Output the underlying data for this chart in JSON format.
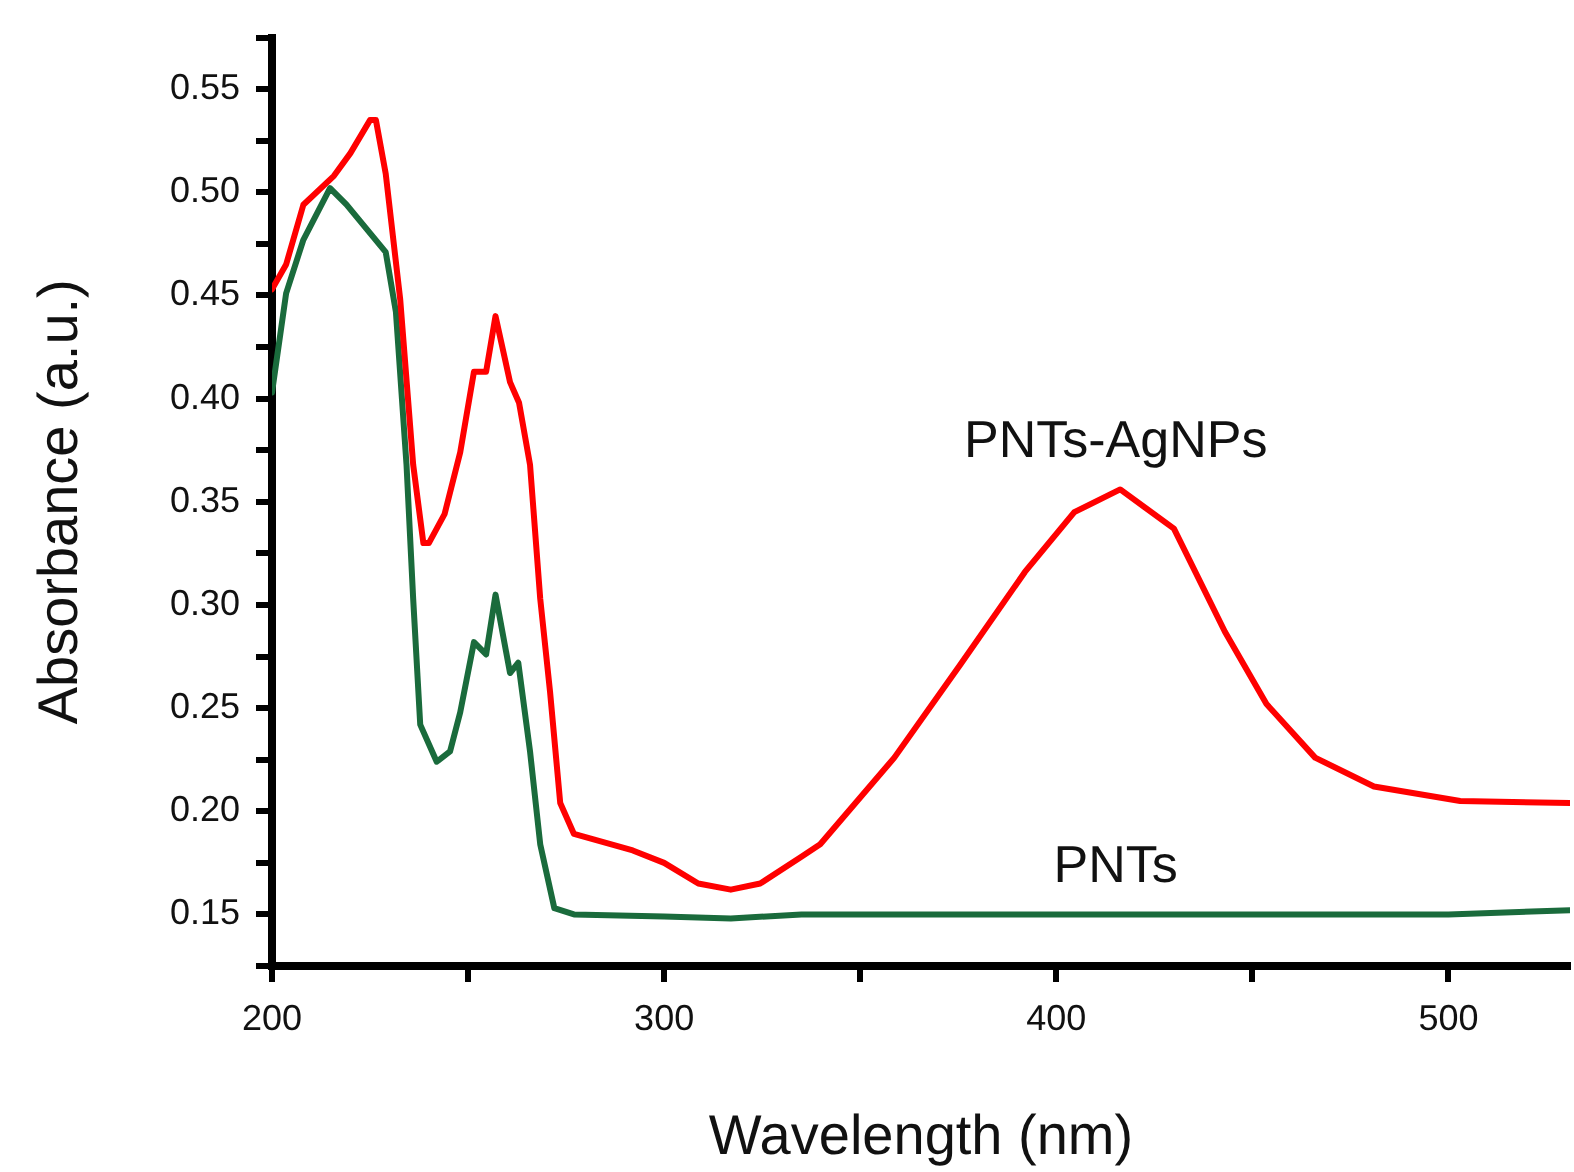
{
  "chart_data": {
    "type": "line",
    "xlabel": "Wavelength (nm)",
    "ylabel": "Absorbance (a.u.)",
    "xlim": [
      200,
      531
    ],
    "ylim": [
      0.125,
      0.575
    ],
    "xticks": [
      200,
      {
        "value": 250,
        "label": null
      },
      300,
      {
        "value": 350,
        "label": null
      },
      400,
      {
        "value": 450,
        "label": null
      },
      500
    ],
    "yticks": [
      {
        "value": 0.125,
        "label": null
      },
      {
        "value": 0.15,
        "label": "0.15"
      },
      {
        "value": 0.175,
        "label": null
      },
      {
        "value": 0.2,
        "label": "0.20"
      },
      {
        "value": 0.225,
        "label": null
      },
      {
        "value": 0.25,
        "label": "0.25"
      },
      {
        "value": 0.275,
        "label": null
      },
      {
        "value": 0.3,
        "label": "0.30"
      },
      {
        "value": 0.325,
        "label": null
      },
      {
        "value": 0.35,
        "label": "0.35"
      },
      {
        "value": 0.375,
        "label": null
      },
      {
        "value": 0.4,
        "label": "0.40"
      },
      {
        "value": 0.425,
        "label": null
      },
      {
        "value": 0.45,
        "label": "0.45"
      },
      {
        "value": 0.475,
        "label": null
      },
      {
        "value": 0.5,
        "label": "0.50"
      },
      {
        "value": 0.525,
        "label": null
      },
      {
        "value": 0.55,
        "label": "0.55"
      },
      {
        "value": 0.575,
        "label": null
      }
    ],
    "grid": false,
    "legend": false,
    "marker": "none",
    "line_style": "solid",
    "series": [
      {
        "name": "PNTs-AgNPs",
        "color": "#ff0000",
        "x": [
          200,
          203.6,
          208,
          215.8,
          220,
          225,
          226.5,
          229,
          232.7,
          236,
          238.6,
          240,
          244,
          248,
          251.5,
          254.6,
          257,
          260.7,
          263,
          265.8,
          268.4,
          270.9,
          273.5,
          277,
          292,
          300,
          308.7,
          317,
          324.5,
          335,
          339.8,
          358.7,
          375.5,
          392,
          404.6,
          416.3,
          430,
          443,
          453.6,
          466,
          481,
          503,
          531
        ],
        "values": [
          0.453,
          0.465,
          0.494,
          0.508,
          0.519,
          0.535,
          0.535,
          0.509,
          0.448,
          0.368,
          0.33,
          0.33,
          0.344,
          0.374,
          0.413,
          0.413,
          0.44,
          0.408,
          0.398,
          0.368,
          0.303,
          0.258,
          0.204,
          0.189,
          0.181,
          0.175,
          0.165,
          0.162,
          0.165,
          0.178,
          0.184,
          0.226,
          0.271,
          0.316,
          0.345,
          0.356,
          0.337,
          0.287,
          0.252,
          0.226,
          0.212,
          0.205,
          0.204
        ]
      },
      {
        "name": "PNTs",
        "color": "#1a6b3c",
        "x": [
          200,
          203.6,
          208,
          214.8,
          219,
          229,
          231.6,
          234.3,
          236,
          237.8,
          242,
          245.4,
          248,
          251.5,
          254.6,
          257,
          260.7,
          262.8,
          265.8,
          268.4,
          272,
          277,
          300,
          317,
          335,
          400,
          500,
          531
        ],
        "values": [
          0.403,
          0.451,
          0.477,
          0.502,
          0.494,
          0.471,
          0.442,
          0.368,
          0.303,
          0.242,
          0.224,
          0.229,
          0.248,
          0.282,
          0.276,
          0.305,
          0.267,
          0.272,
          0.229,
          0.184,
          0.153,
          0.15,
          0.149,
          0.148,
          0.15,
          0.15,
          0.15,
          0.152
        ]
      }
    ]
  }
}
